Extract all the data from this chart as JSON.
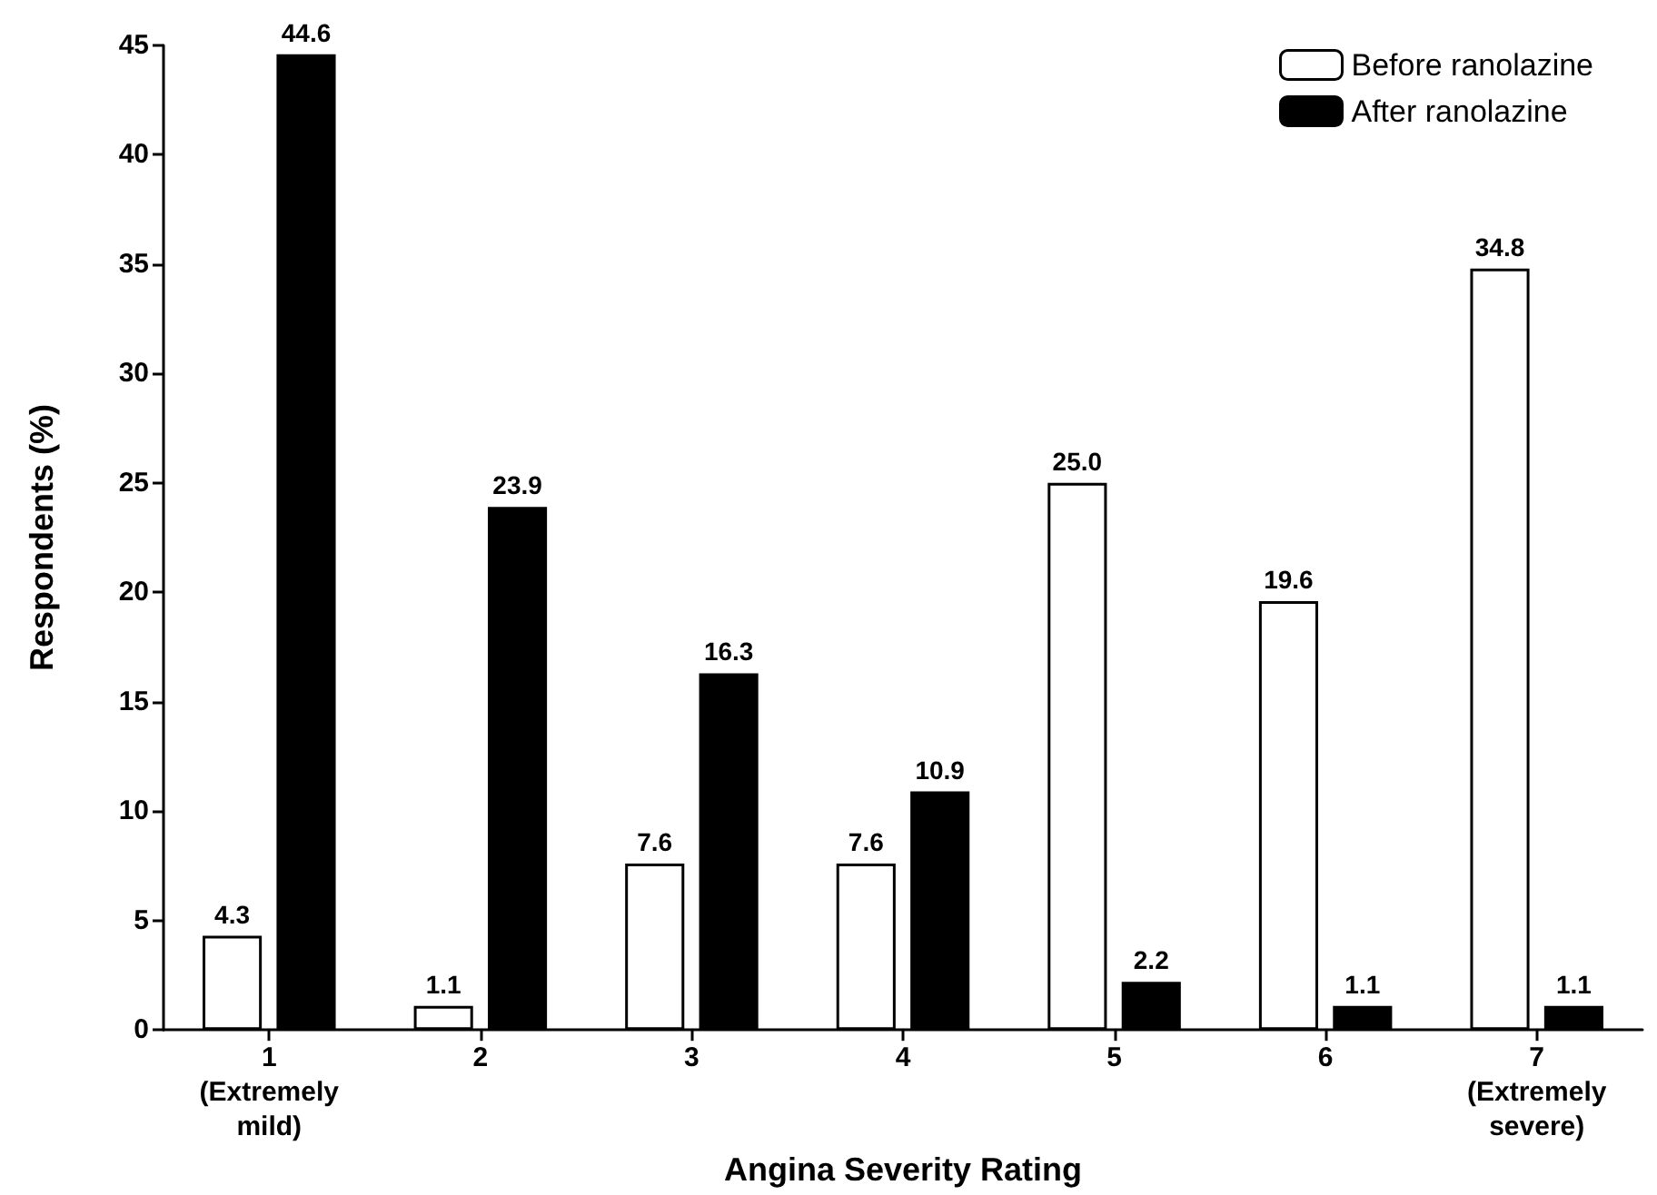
{
  "chart_data": {
    "type": "bar",
    "xlabel": "Angina Severity Rating",
    "ylabel": "Respondents (%)",
    "categories": [
      "1\n(Extremely\nmild)",
      "2",
      "3",
      "4",
      "5",
      "6",
      "7\n(Extremely\nsevere)"
    ],
    "series": [
      {
        "name": "Before ranolazine",
        "color": "#ffffff",
        "values": [
          4.3,
          1.1,
          7.6,
          7.6,
          25.0,
          19.6,
          34.8
        ],
        "value_labels": [
          "4.3",
          "1.1",
          "7.6",
          "7.6",
          "25.0",
          "19.6",
          "34.8"
        ]
      },
      {
        "name": "After ranolazine",
        "color": "#000000",
        "values": [
          44.6,
          23.9,
          16.3,
          10.9,
          2.2,
          1.1,
          1.1
        ],
        "value_labels": [
          "44.6",
          "23.9",
          "16.3",
          "10.9",
          "2.2",
          "1.1",
          "1.1"
        ]
      }
    ],
    "ylim": [
      0,
      45
    ],
    "yticks": [
      0,
      5,
      10,
      15,
      20,
      25,
      30,
      35,
      40,
      45
    ],
    "grid": false,
    "legend": "top right"
  }
}
